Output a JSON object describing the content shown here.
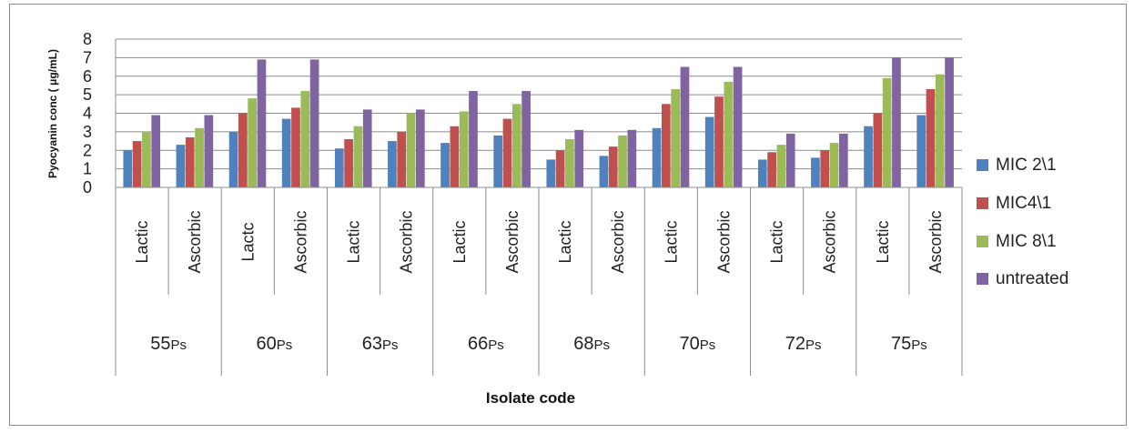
{
  "chart_data": {
    "type": "bar",
    "title": "",
    "xlabel": "Isolate code",
    "ylabel": "Pyocyanin conc ( μg/mL)",
    "ylim": [
      0,
      8
    ],
    "yticks": [
      "0",
      "1",
      "2",
      "3",
      "4",
      "5",
      "6",
      "7",
      "8"
    ],
    "grid": true,
    "legend_position": "right",
    "groups": [
      {
        "label": "55",
        "suffix": "Ps",
        "categories": [
          "Lactic",
          "Ascorbic"
        ]
      },
      {
        "label": "60",
        "suffix": "Ps",
        "categories": [
          "Lactc",
          "Ascorbic"
        ]
      },
      {
        "label": "63",
        "suffix": "Ps",
        "categories": [
          "Lactic",
          "Ascorbic"
        ]
      },
      {
        "label": "66",
        "suffix": "Ps",
        "categories": [
          "Lactic",
          "Ascorbic"
        ]
      },
      {
        "label": "68",
        "suffix": "Ps",
        "categories": [
          "Lactic",
          "Ascorbic"
        ]
      },
      {
        "label": "70",
        "suffix": "Ps",
        "categories": [
          "Lactic",
          "Ascorbic"
        ]
      },
      {
        "label": "72",
        "suffix": "Ps",
        "categories": [
          "Lactic",
          "Ascorbic"
        ]
      },
      {
        "label": "75",
        "suffix": "Ps",
        "categories": [
          "Lactic",
          "Ascorbic"
        ]
      }
    ],
    "series": [
      {
        "name": "MIC 2\\1",
        "color": "#4F81BD",
        "values": [
          2.0,
          2.3,
          3.0,
          3.7,
          2.1,
          2.5,
          2.4,
          2.8,
          1.5,
          1.7,
          3.2,
          3.8,
          1.5,
          1.6,
          3.3,
          3.9
        ]
      },
      {
        "name": "MIC4\\1",
        "color": "#C0504D",
        "values": [
          2.5,
          2.7,
          4.0,
          4.3,
          2.6,
          3.0,
          3.3,
          3.7,
          2.0,
          2.2,
          4.5,
          4.9,
          1.9,
          2.0,
          4.0,
          5.3
        ]
      },
      {
        "name": "MIC 8\\1",
        "color": "#9BBB59",
        "values": [
          3.0,
          3.2,
          4.8,
          5.2,
          3.3,
          4.0,
          4.1,
          4.5,
          2.6,
          2.8,
          5.3,
          5.7,
          2.3,
          2.4,
          5.9,
          6.1
        ]
      },
      {
        "name": "untreated",
        "color": "#8064A2",
        "values": [
          3.9,
          3.9,
          6.9,
          6.9,
          4.2,
          4.2,
          5.2,
          5.2,
          3.1,
          3.1,
          6.5,
          6.5,
          2.9,
          2.9,
          7.0,
          7.0
        ]
      }
    ]
  }
}
